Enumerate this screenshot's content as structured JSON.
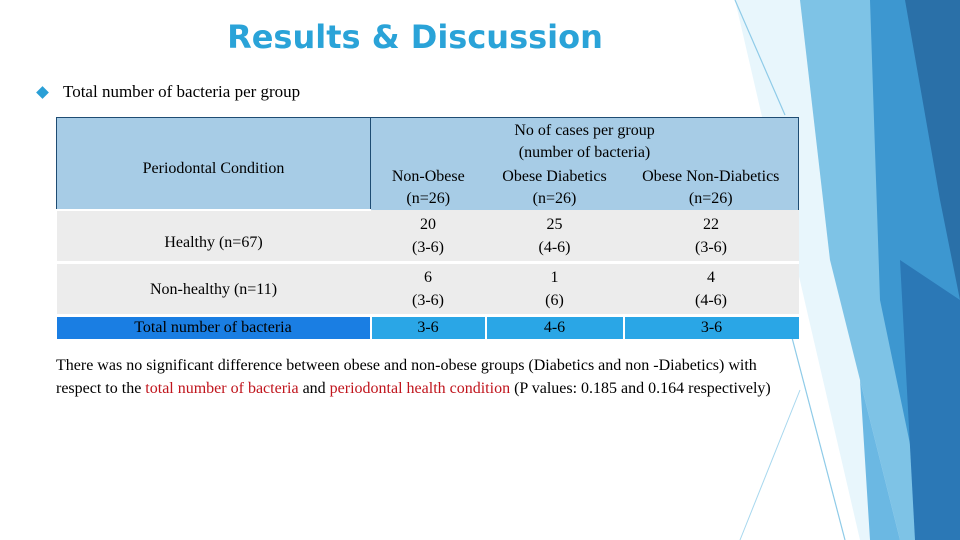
{
  "slide": {
    "title": "Results & Discussion",
    "bullet": "Total number of bacteria per group"
  },
  "table": {
    "header": {
      "condition": "Periodontal Condition",
      "group_title_line1": "No of cases per group",
      "group_title_line2": "(number of bacteria)",
      "columns": [
        {
          "name": "Non-Obese",
          "n": "(n=26)"
        },
        {
          "name": "Obese Diabetics",
          "n": "(n=26)"
        },
        {
          "name": "Obese Non-Diabetics",
          "n": "(n=26)"
        }
      ]
    },
    "rows": [
      {
        "label": "Healthy (n=67)",
        "cells": [
          {
            "value": "20",
            "range": "(3-6)"
          },
          {
            "value": "25",
            "range": "(4-6)"
          },
          {
            "value": "22",
            "range": "(3-6)"
          }
        ]
      },
      {
        "label": "Non-healthy (n=11)",
        "cells": [
          {
            "value": "6",
            "range": "(3-6)"
          },
          {
            "value": "1",
            "range": "(6)"
          },
          {
            "value": "4",
            "range": "(4-6)"
          }
        ]
      }
    ],
    "total": {
      "label": "Total number of bacteria",
      "values": [
        "3-6",
        "4-6",
        "3-6"
      ]
    }
  },
  "note": {
    "part1": "There was no significant difference between obese and non-obese groups (Diabetics and non -Diabetics) with respect to the ",
    "highlight1": "total number of bacteria",
    "part2": " and ",
    "highlight2": "periodontal health condition",
    "part3": "  (P values: 0.185 and 0.164 respectively)"
  },
  "colors": {
    "title": "#2aa3d8",
    "header_bg": "#a7cce6",
    "row_bg": "#ececec",
    "total_bg": "#2aa6e6",
    "total_label_bg": "#1a7ee3",
    "highlight": "#c0141c"
  },
  "icons": {
    "bullet": "diamond-bullet-icon"
  }
}
